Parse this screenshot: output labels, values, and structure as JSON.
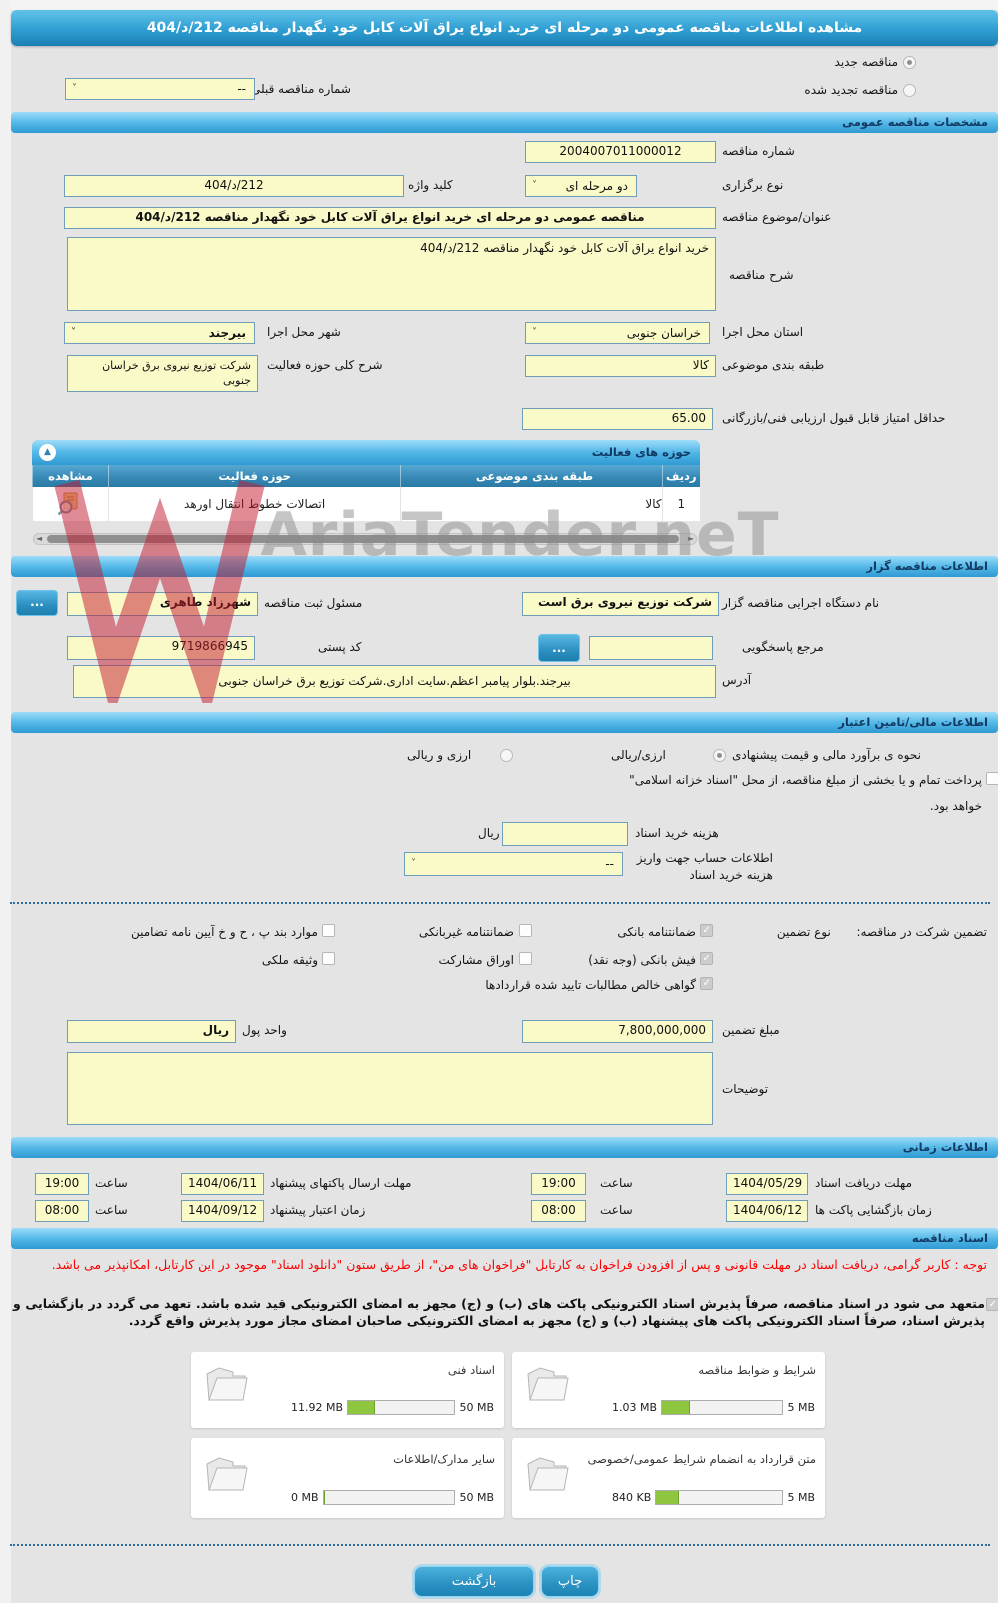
{
  "icons": {
    "chevron_down": "˅",
    "collapse": "▲",
    "scroll_left": "◄",
    "scroll_right": "►"
  },
  "watermark": {
    "text": "AriaTender.neT"
  },
  "header": {
    "title": "مشاهده اطلاعات مناقصه عمومی دو مرحله ای خرید انواع یراق آلات کابل خود نگهدار مناقصه 212/د/404"
  },
  "top": {
    "radios": [
      {
        "label": "مناقصه جدید",
        "selected": true
      },
      {
        "label": "مناقصه تجدید شده",
        "selected": false
      }
    ],
    "prev_number_label": "شماره مناقصه قبلی",
    "prev_number_value": "--"
  },
  "general": {
    "section_title": "مشخصات مناقصه عمومی",
    "tender_number_label": "شماره مناقصه",
    "tender_number": "2004007011000012",
    "hold_type_label": "نوع برگزاری",
    "hold_type": "دو مرحله ای",
    "keyword_label": "کلید واژه",
    "keyword": "212/د/404",
    "subject_label": "عنوان/موضوع مناقصه",
    "subject": "مناقصه عمومی دو مرحله ای خرید انواع یراق آلات کابل خود نگهدار مناقصه 212/د/404",
    "desc_label": "شرح مناقصه",
    "desc": "خرید انواع یراق آلات کابل خود نگهدار مناقصه 212/د/404",
    "province_label": "استان محل اجرا",
    "province": "خراسان جنوبی",
    "city_label": "شهر محل اجرا",
    "city": "بیرجند",
    "category_label": "طبقه بندی موضوعی",
    "category": "کالا",
    "activity_label": "شرح کلی حوزه فعالیت",
    "activity": "شرکت توزیع نیروی برق خراسان جنوبی",
    "min_score_label": "حداقل امتیاز قابل قبول ارزیابی فنی/بازرگانی",
    "min_score": "65.00"
  },
  "activity_panel": {
    "title": "حوزه های فعالیت",
    "col_row": "ردیف",
    "col_category": "طبقه بندی موضوعی",
    "col_field": "حوزه فعالیت",
    "col_view": "مشاهده",
    "rows": [
      {
        "row": "1",
        "category": "کالا",
        "field": "اتصالات خطوط انتقال اورهد"
      }
    ]
  },
  "agency": {
    "section_title": "اطلاعات مناقصه گزار",
    "name_label": "نام دستگاه اجرایی مناقصه گزار",
    "name": "شرکت توزیع نیروی برق است",
    "registrar_label": "مسئول ثبت مناقصه",
    "registrar": "شهرزاد طاهری",
    "more_button": "...",
    "reference_label": "مرجع پاسخگویی",
    "reference": "",
    "postal_label": "کد پستی",
    "postal_code": "9719866945",
    "address_label": "آدرس",
    "address": "بیرجند.بلوار پیامبر اعظم.سایت اداری.شرکت توزیع برق خراسان جنوبی"
  },
  "finance": {
    "section_title": "اطلاعات مالی/تامین اعتبار",
    "estimate_label": "نحوه ی برآورد مالی و قیمت پیشنهادی",
    "estimate_options": [
      {
        "label": "ارزی/ریالی",
        "selected": true
      },
      {
        "label": "ارزی و ریالی",
        "selected": false
      }
    ],
    "treasury_checked": false,
    "treasury_note_line1": "پرداخت تمام و یا بخشی از مبلغ مناقصه، از محل \"اسناد خزانه اسلامی\"",
    "treasury_note_line2": "خواهد بود.",
    "doc_fee_label": "هزینه خرید اسناد",
    "doc_fee_value": "",
    "doc_fee_unit": "ریال",
    "account_label": "اطلاعات حساب جهت واریز هزینه خرید اسناد",
    "account_value": "--",
    "guarantee_label": "تضمین شرکت در مناقصه:",
    "guarantee_type_label": "نوع تضمین",
    "guarantees_col1": [
      {
        "label": "ضمانتنامه بانکی",
        "checked": true
      },
      {
        "label": "فیش بانکی (وجه نقد)",
        "checked": true
      },
      {
        "label": "گواهی خالص مطالبات تایید شده قراردادها",
        "checked": true
      }
    ],
    "guarantees_col2": [
      {
        "label": "ضمانتنامه غیربانکی",
        "checked": false
      },
      {
        "label": "اوراق مشارکت",
        "checked": false
      }
    ],
    "guarantees_col3": [
      {
        "label": "موارد بند پ ، ح و خ آیین نامه تضامین",
        "checked": false
      },
      {
        "label": "وثیقه ملکی",
        "checked": false
      }
    ],
    "amount_label": "مبلغ تضمین",
    "amount": "7,800,000,000",
    "currency_label": "واحد پول",
    "currency": "ریال",
    "notes_label": "توضیحات",
    "notes": ""
  },
  "schedule": {
    "section_title": "اطلاعات زمانی",
    "items": [
      {
        "label": "مهلت دریافت اسناد",
        "date": "1404/05/29",
        "time_label": "ساعت",
        "time": "19:00"
      },
      {
        "label": "مهلت ارسال پاکتهای پیشنهاد",
        "date": "1404/06/11",
        "time_label": "ساعت",
        "time": "19:00"
      },
      {
        "label": "زمان بازگشایی پاکت ها",
        "date": "1404/06/12",
        "time_label": "ساعت",
        "time": "08:00"
      },
      {
        "label": "زمان اعتبار پیشنهاد",
        "date": "1404/09/12",
        "time_label": "ساعت",
        "time": "08:00"
      }
    ]
  },
  "documents": {
    "section_title": "اسناد مناقصه",
    "notice": "توجه : کاربر گرامی، دریافت اسناد در مهلت قانونی و پس از افزودن فراخوان به کارتابل \"فراخوان های من\"، از طریق ستون \"دانلود اسناد\" موجود در این کارتابل، امکانپذیر می باشد.",
    "commitment_checked": true,
    "commitment": "متعهد می شود در اسناد مناقصه، صرفاً پذیرش اسناد الکترونیکی پاکت های (ب) و (ج) مجهز به امضای الکترونیکی قید شده باشد. تعهد می گردد در بازگشایی و پذیرش اسناد، صرفاً اسناد الکترونیکی پاکت های پیشنهاد (ب) و (ج) مجهز به امضای الکترونیکی صاحبان امضای مجاز مورد پذیرش واقع گردد.",
    "files": [
      {
        "label": "شرایط و ضوابط مناقصه",
        "used": "1.03 MB",
        "max": "5 MB",
        "pct": 22
      },
      {
        "label": "اسناد فنی",
        "used": "11.92 MB",
        "max": "50 MB",
        "pct": 24
      },
      {
        "label": "متن قرارداد به انضمام شرایط عمومی/خصوصی",
        "used": "840 KB",
        "max": "5 MB",
        "pct": 17
      },
      {
        "label": "سایر مدارک/اطلاعات",
        "used": "0 MB",
        "max": "50 MB",
        "pct": 0
      }
    ]
  },
  "footer": {
    "back": "بازگشت",
    "print": "چاپ"
  }
}
